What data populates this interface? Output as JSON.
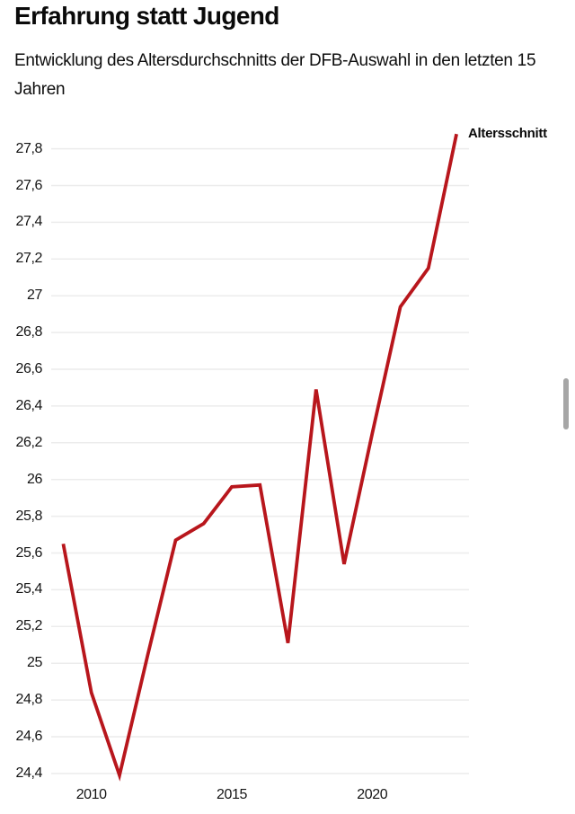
{
  "header": {
    "title": "Erfahrung statt Jugend",
    "subtitle_lines": [
      "Entwicklung des Altersdurchschnitts der DFB-Auswahl in den letzten 15",
      "Jahren"
    ]
  },
  "legend": {
    "series_label": "Altersschnitt"
  },
  "colors": {
    "background": "#ffffff",
    "line": "#b8161c",
    "grid": "#ececec",
    "text": "#141414",
    "scrollbar": "#a6a6a6"
  },
  "chart_data": {
    "type": "line",
    "title": "Erfahrung statt Jugend",
    "subtitle": "Entwicklung des Altersdurchschnitts der DFB-Auswahl in den letzten 15 Jahren",
    "x": [
      2009,
      2010,
      2011,
      2012,
      2013,
      2014,
      2015,
      2016,
      2017,
      2018,
      2019,
      2020,
      2021,
      2022,
      2023
    ],
    "series": [
      {
        "name": "Altersschnitt",
        "values": [
          25.65,
          24.84,
          24.39,
          25.04,
          25.67,
          25.76,
          25.96,
          25.97,
          25.11,
          26.49,
          25.54,
          26.25,
          26.94,
          27.15,
          27.88
        ]
      }
    ],
    "xlabel": "",
    "ylabel": "",
    "x_tick_labels": [
      "2010",
      "2015",
      "2020"
    ],
    "x_tick_values": [
      2010,
      2015,
      2020
    ],
    "y_tick_labels": [
      "27,8",
      "27,6",
      "27,4",
      "27,2",
      "27",
      "26,8",
      "26,6",
      "26,4",
      "26,2",
      "26",
      "25,8",
      "25,6",
      "25,4",
      "25,2",
      "25",
      "24,8",
      "24,6",
      "24,4"
    ],
    "y_tick_values": [
      27.8,
      27.6,
      27.4,
      27.2,
      27.0,
      26.8,
      26.6,
      26.4,
      26.2,
      26.0,
      25.8,
      25.6,
      25.4,
      25.2,
      25.0,
      24.8,
      24.6,
      24.4
    ],
    "ylim": [
      24.3,
      27.95
    ],
    "decimal_separator": ",",
    "grid": true,
    "legend_position": "top-right"
  }
}
